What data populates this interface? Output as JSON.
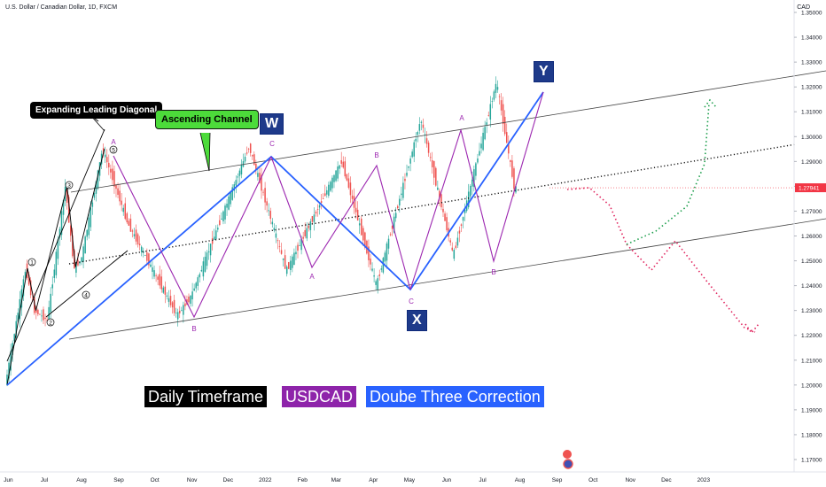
{
  "header": {
    "title": "U.S. Dollar / Canadian Dollar, 1D, FXCM",
    "currency": "CAD"
  },
  "chart_data": {
    "type": "line",
    "symbol": "USDCAD",
    "x_ticks": [
      "Jun",
      "Jul",
      "Aug",
      "Sep",
      "Oct",
      "Nov",
      "Dec",
      "2022",
      "Feb",
      "Mar",
      "Apr",
      "May",
      "Jun",
      "Jul",
      "Aug",
      "Sep",
      "Oct",
      "Nov",
      "Dec",
      "2023"
    ],
    "ylim": [
      1.165,
      1.355
    ],
    "y_ticks": [
      1.35,
      1.34,
      1.33,
      1.32,
      1.31,
      1.3,
      1.29,
      1.28,
      1.27,
      1.26,
      1.25,
      1.24,
      1.23,
      1.22,
      1.21,
      1.2,
      1.19,
      1.18,
      1.17
    ],
    "last_price": 1.27941,
    "series": [
      {
        "values": [
          [
            "2021-05-31",
            1.2
          ],
          [
            "2021-06-17",
            1.247
          ],
          [
            "2021-06-24",
            1.23
          ],
          [
            "2021-07-05",
            1.226
          ],
          [
            "2021-07-20",
            1.28
          ],
          [
            "2021-07-27",
            1.2475
          ],
          [
            "2021-08-02",
            1.25
          ],
          [
            "2021-08-20",
            1.295
          ],
          [
            "2021-09-10",
            1.265
          ],
          [
            "2021-10-21",
            1.228
          ],
          [
            "2021-11-01",
            1.235
          ],
          [
            "2021-12-20",
            1.296
          ],
          [
            "2022-01-20",
            1.246
          ],
          [
            "2022-03-07",
            1.29
          ],
          [
            "2022-04-05",
            1.24
          ],
          [
            "2022-05-12",
            1.307
          ],
          [
            "2022-06-08",
            1.252
          ],
          [
            "2022-07-14",
            1.322
          ],
          [
            "2022-07-29",
            1.279
          ]
        ]
      }
    ]
  },
  "labels": {
    "daily_timeframe": "Daily Timeframe",
    "symbol": "USDCAD",
    "correction": "Doube Three Correction",
    "expanding": "Expanding Leading Diagonal",
    "channel": "Ascending Channel",
    "big_w": "W",
    "big_x": "X",
    "big_y": "Y",
    "wave_1": "1",
    "wave_2": "2",
    "wave_3": "3",
    "wave_4": "4",
    "wave_5": "5",
    "wave_a1": "A",
    "wave_b1": "B",
    "wave_c1": "C",
    "wave_a2": "A",
    "wave_b2": "B",
    "wave_c2": "C",
    "wave_a3": "A",
    "wave_b3": "B"
  },
  "colors": {
    "blue": "#2962ff",
    "purple": "#9c27b0",
    "up": "#26a69a",
    "down": "#ef5350",
    "price_tag": "#f23645",
    "projection_red": "#e0245e",
    "projection_green": "#1b9e4b"
  }
}
